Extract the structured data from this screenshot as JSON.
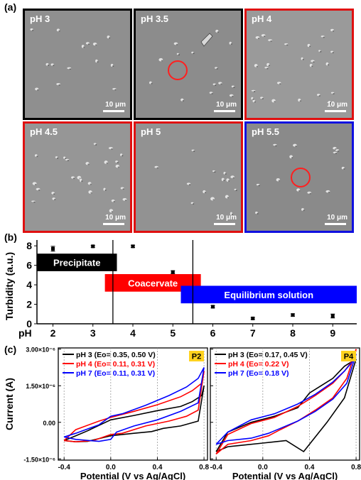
{
  "panels": {
    "a": "(a)",
    "b": "(b)",
    "c": "(c)"
  },
  "images": {
    "scale_bar": "10 μm",
    "tiles": [
      {
        "label": "pH 3",
        "border": "#000000",
        "tone": "#8f8f8f",
        "marked": false
      },
      {
        "label": "pH 3.5",
        "border": "#000000",
        "tone": "#8c8c8c",
        "marked": true
      },
      {
        "label": "pH 4",
        "border": "#e01010",
        "tone": "#9a9a9a",
        "marked": false
      },
      {
        "label": "pH 4.5",
        "border": "#e01010",
        "tone": "#969696",
        "marked": false
      },
      {
        "label": "pH 5",
        "border": "#e01010",
        "tone": "#929292",
        "marked": false
      },
      {
        "label": "pH 5.5",
        "border": "#1010e0",
        "tone": "#8a8a8a",
        "marked": true
      }
    ]
  },
  "chart_data": [
    {
      "type": "scatter",
      "ylabel": "Turbidity (a.u.)",
      "xaxis_prefix": "pH",
      "xlim": [
        1.6,
        9.6
      ],
      "ylim": [
        0,
        8.6
      ],
      "xticks": [
        2,
        3,
        4,
        5,
        6,
        7,
        8,
        9
      ],
      "yticks": [
        0,
        2,
        4,
        6,
        8
      ],
      "points": [
        {
          "x": 2,
          "y": 7.7,
          "err": 0.25
        },
        {
          "x": 3,
          "y": 7.95,
          "err": 0.1
        },
        {
          "x": 4,
          "y": 7.95,
          "err": 0.12
        },
        {
          "x": 5,
          "y": 5.3,
          "err": 0.15
        },
        {
          "x": 6,
          "y": 1.75,
          "err": 0.12
        },
        {
          "x": 7,
          "y": 0.55,
          "err": 0.1
        },
        {
          "x": 8,
          "y": 0.9,
          "err": 0.12
        },
        {
          "x": 9,
          "y": 0.8,
          "err": 0.2
        }
      ],
      "vlines": [
        3.5,
        5.5
      ],
      "regions": [
        {
          "label": "Precipitate",
          "x0": 1.6,
          "x1": 3.6,
          "y0": 5.4,
          "y1": 7.2,
          "color": "#000000"
        },
        {
          "label": "Coacervate",
          "x0": 3.3,
          "x1": 5.7,
          "y0": 3.3,
          "y1": 5.1,
          "color": "#ff0000"
        },
        {
          "label": "Equilibrium solution",
          "x0": 5.2,
          "x1": 9.6,
          "y0": 2.1,
          "y1": 3.9,
          "color": "#0000ff"
        }
      ]
    },
    {
      "type": "line",
      "ylabel": "Current (A)",
      "xlabel": "Potential (V vs Ag/AgCl)",
      "xticks": [
        "-0.4",
        "0.0",
        "0.4",
        "0.8"
      ],
      "yticks": [
        "3.00×10⁻⁶",
        "1.50×10⁻⁶",
        "0.00",
        "-1.50×10⁻⁶"
      ],
      "subplots": [
        {
          "tag": "P2",
          "series": [
            {
              "name": "pH 3 (Eo= 0.35, 0.50 V)",
              "color": "#000000",
              "upper": [
                [
                  -0.4,
                  -0.75
                ],
                [
                  -0.3,
                  -0.55
                ],
                [
                  -0.2,
                  -0.35
                ],
                [
                  0,
                  0.1
                ],
                [
                  0.2,
                  0.28
                ],
                [
                  0.4,
                  0.48
                ],
                [
                  0.6,
                  0.65
                ],
                [
                  0.7,
                  0.85
                ],
                [
                  0.78,
                  1.1
                ],
                [
                  0.8,
                  1.5
                ]
              ],
              "lower": [
                [
                  -0.4,
                  -0.75
                ],
                [
                  -0.3,
                  -0.8
                ],
                [
                  -0.2,
                  -0.78
                ],
                [
                  0,
                  -0.55
                ],
                [
                  0.2,
                  -0.45
                ],
                [
                  0.35,
                  -0.38
                ],
                [
                  0.45,
                  -0.25
                ],
                [
                  0.6,
                  -0.15
                ],
                [
                  0.75,
                  0.05
                ],
                [
                  0.8,
                  1.5
                ]
              ]
            },
            {
              "name": "pH 4 (Eo= 0.11, 0.31 V)",
              "color": "#ff0000",
              "upper": [
                [
                  -0.4,
                  -0.75
                ],
                [
                  -0.3,
                  -0.3
                ],
                [
                  -0.1,
                  0.05
                ],
                [
                  0,
                  0.2
                ],
                [
                  0.2,
                  0.45
                ],
                [
                  0.4,
                  0.72
                ],
                [
                  0.6,
                  1.05
                ],
                [
                  0.7,
                  1.3
                ],
                [
                  0.78,
                  1.6
                ],
                [
                  0.8,
                  2.1
                ]
              ],
              "lower": [
                [
                  -0.4,
                  -0.75
                ],
                [
                  -0.3,
                  -0.8
                ],
                [
                  -0.15,
                  -0.75
                ],
                [
                  0,
                  -0.5
                ],
                [
                  0.1,
                  -0.45
                ],
                [
                  0.3,
                  -0.15
                ],
                [
                  0.5,
                  0.05
                ],
                [
                  0.65,
                  0.25
                ],
                [
                  0.75,
                  0.5
                ],
                [
                  0.8,
                  2.1
                ]
              ]
            },
            {
              "name": "pH 7 (Eo= 0.11, 0.31 V)",
              "color": "#0000ff",
              "upper": [
                [
                  -0.4,
                  -0.6
                ],
                [
                  -0.3,
                  -0.45
                ],
                [
                  -0.1,
                  -0.1
                ],
                [
                  0,
                  0.25
                ],
                [
                  0.1,
                  0.35
                ],
                [
                  0.3,
                  0.7
                ],
                [
                  0.5,
                  1.1
                ],
                [
                  0.65,
                  1.45
                ],
                [
                  0.75,
                  1.8
                ],
                [
                  0.8,
                  2.25
                ]
              ],
              "lower": [
                [
                  -0.4,
                  -0.6
                ],
                [
                  -0.3,
                  -0.7
                ],
                [
                  -0.1,
                  -0.78
                ],
                [
                  0,
                  -0.7
                ],
                [
                  0.05,
                  -0.4
                ],
                [
                  0.2,
                  -0.15
                ],
                [
                  0.4,
                  0.1
                ],
                [
                  0.6,
                  0.45
                ],
                [
                  0.75,
                  0.8
                ],
                [
                  0.8,
                  2.25
                ]
              ]
            }
          ]
        },
        {
          "tag": "P4",
          "series": [
            {
              "name": "pH 3 (Eo= 0.17, 0.45 V)",
              "color": "#000000",
              "upper": [
                [
                  -0.4,
                  -1.2
                ],
                [
                  -0.3,
                  -0.4
                ],
                [
                  -0.1,
                  0.0
                ],
                [
                  0.1,
                  0.25
                ],
                [
                  0.3,
                  0.6
                ],
                [
                  0.4,
                  1.2
                ],
                [
                  0.5,
                  1.5
                ],
                [
                  0.6,
                  1.8
                ],
                [
                  0.7,
                  2.3
                ],
                [
                  0.8,
                  2.6
                ]
              ],
              "lower": [
                [
                  -0.4,
                  -1.2
                ],
                [
                  -0.3,
                  -1.0
                ],
                [
                  -0.2,
                  -0.95
                ],
                [
                  0,
                  -0.85
                ],
                [
                  0.2,
                  -0.75
                ],
                [
                  0.35,
                  -1.2
                ],
                [
                  0.45,
                  -0.6
                ],
                [
                  0.55,
                  0.0
                ],
                [
                  0.7,
                  1.0
                ],
                [
                  0.8,
                  2.6
                ]
              ]
            },
            {
              "name": "pH 4 (Eo= 0.22 V)",
              "color": "#ff0000",
              "upper": [
                [
                  -0.4,
                  -1.3
                ],
                [
                  -0.3,
                  -0.5
                ],
                [
                  -0.1,
                  -0.05
                ],
                [
                  0.1,
                  0.2
                ],
                [
                  0.3,
                  0.65
                ],
                [
                  0.45,
                  1.1
                ],
                [
                  0.6,
                  1.6
                ],
                [
                  0.7,
                  2.1
                ],
                [
                  0.78,
                  2.6
                ],
                [
                  0.8,
                  3.0
                ]
              ],
              "lower": [
                [
                  -0.4,
                  -1.3
                ],
                [
                  -0.3,
                  -0.9
                ],
                [
                  -0.1,
                  -0.75
                ],
                [
                  0.05,
                  -0.55
                ],
                [
                  0.15,
                  -0.3
                ],
                [
                  0.3,
                  0.05
                ],
                [
                  0.45,
                  0.5
                ],
                [
                  0.6,
                  1.0
                ],
                [
                  0.72,
                  1.8
                ],
                [
                  0.8,
                  3.0
                ]
              ]
            },
            {
              "name": "pH 7 (Eo= 0.18 V)",
              "color": "#0000ff",
              "upper": [
                [
                  -0.4,
                  -0.9
                ],
                [
                  -0.3,
                  -0.4
                ],
                [
                  -0.1,
                  0.1
                ],
                [
                  0.1,
                  0.35
                ],
                [
                  0.3,
                  0.75
                ],
                [
                  0.45,
                  1.15
                ],
                [
                  0.6,
                  1.65
                ],
                [
                  0.7,
                  2.1
                ],
                [
                  0.78,
                  2.55
                ],
                [
                  0.8,
                  2.8
                ]
              ],
              "lower": [
                [
                  -0.4,
                  -0.9
                ],
                [
                  -0.3,
                  -0.75
                ],
                [
                  -0.1,
                  -0.65
                ],
                [
                  0.05,
                  -0.45
                ],
                [
                  0.15,
                  -0.25
                ],
                [
                  0.3,
                  0.05
                ],
                [
                  0.45,
                  0.45
                ],
                [
                  0.6,
                  0.95
                ],
                [
                  0.72,
                  1.6
                ],
                [
                  0.8,
                  2.8
                ]
              ]
            }
          ]
        }
      ]
    }
  ]
}
